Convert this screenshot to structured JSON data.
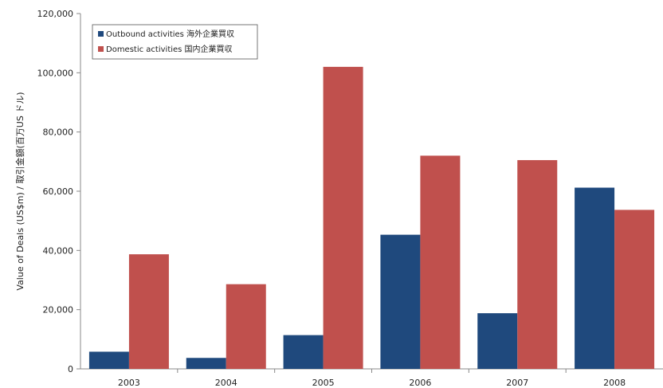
{
  "chart_data": {
    "type": "bar",
    "title": "",
    "xlabel": "",
    "ylabel": "Value of Deals (US$m) / 取引金額(百万US ドル)",
    "categories": [
      "2003",
      "2004",
      "2005",
      "2006",
      "2007",
      "2008"
    ],
    "series": [
      {
        "name": "Outbound activities 海外企業買収",
        "color": "#1f497d",
        "values": [
          5800,
          3700,
          11400,
          45300,
          18800,
          61200
        ]
      },
      {
        "name": "Domestic activities 国内企業買収",
        "color": "#c0504d",
        "values": [
          38700,
          28600,
          102000,
          72000,
          70500,
          53700
        ]
      }
    ],
    "ylim": [
      0,
      120000
    ],
    "yticks": [
      "0",
      "20,000",
      "40,000",
      "60,000",
      "80,000",
      "100,000",
      "120,000"
    ],
    "ytick_values": [
      0,
      20000,
      40000,
      60000,
      80000,
      100000,
      120000
    ],
    "legend_position": "top-left",
    "grid": false
  }
}
